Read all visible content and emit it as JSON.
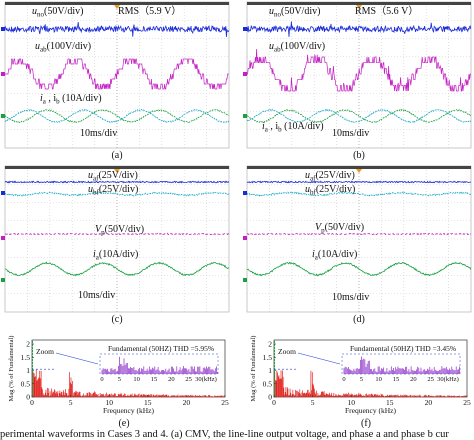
{
  "panels": [
    {
      "letter": "(a)",
      "labels": [
        [
          "u",
          "no",
          "(50V/div)"
        ],
        [
          "RMS（5.9 V）"
        ],
        [
          "u",
          "ab",
          "(100V/div)"
        ],
        [
          "i",
          "a",
          " , i",
          "b",
          " (10A/div)"
        ],
        [
          "10ms/div"
        ]
      ]
    },
    {
      "letter": "(b)",
      "labels": [
        [
          "u",
          "no",
          "(50V/div)"
        ],
        [
          "RMS（5.6 V）"
        ],
        [
          "u",
          "ab",
          "(100V/div)"
        ],
        [
          "i",
          "a",
          " , i",
          "b",
          " (10A/div)"
        ],
        [
          "10ms/div"
        ]
      ]
    },
    {
      "letter": "(c)",
      "labels": [
        [
          "u",
          "af",
          "(25V/div)"
        ],
        [
          "u",
          "bf",
          "(25V/div)"
        ],
        [
          "V",
          "p",
          "(50V/div)"
        ],
        [
          "i",
          "a",
          "(10A/div)"
        ],
        [
          "10ms/div"
        ]
      ]
    },
    {
      "letter": "(d)",
      "labels": [
        [
          "u",
          "af",
          "(25V/div)"
        ],
        [
          "u",
          "bf",
          "(25V/div)"
        ],
        [
          "V",
          "p",
          "(50V/div)"
        ],
        [
          "i",
          "a",
          "(10A/div)"
        ],
        [
          "10ms/div"
        ]
      ]
    }
  ],
  "spectra": [
    {
      "letter": "(e)",
      "title": "Fundamental (50HZ) THD =5.95%",
      "zoom": "Zoom",
      "xlabel": "Frequency (kHz)",
      "ylabel": "Mag (% of Fundamental)",
      "xticks": [
        "0",
        "5",
        "10",
        "15",
        "20",
        "25"
      ],
      "yticks": [
        "0",
        "0.5",
        "1",
        "1.5",
        "2"
      ],
      "inset_ticks": [
        "0",
        "5",
        "10",
        "15",
        "20",
        "25",
        "30(kHz)"
      ]
    },
    {
      "letter": "(f)",
      "title": "Fundamental (50HZ) THD =3.45%",
      "zoom": "Zoom",
      "xlabel": "Frequency (kHz)",
      "ylabel": "Mag (% of Fundamental)",
      "xticks": [
        "0",
        "5",
        "10",
        "15",
        "20",
        "25"
      ],
      "yticks": [
        "0",
        "0.5",
        "1",
        "1.5",
        "2"
      ],
      "inset_ticks": [
        "0",
        "5",
        "10",
        "15",
        "20",
        "25",
        "30(kHz)"
      ]
    }
  ],
  "caption": "perimental waveforms in Cases 3 and 4. (a) CMV, the line-line output voltage, and phase a and phase b cur"
}
